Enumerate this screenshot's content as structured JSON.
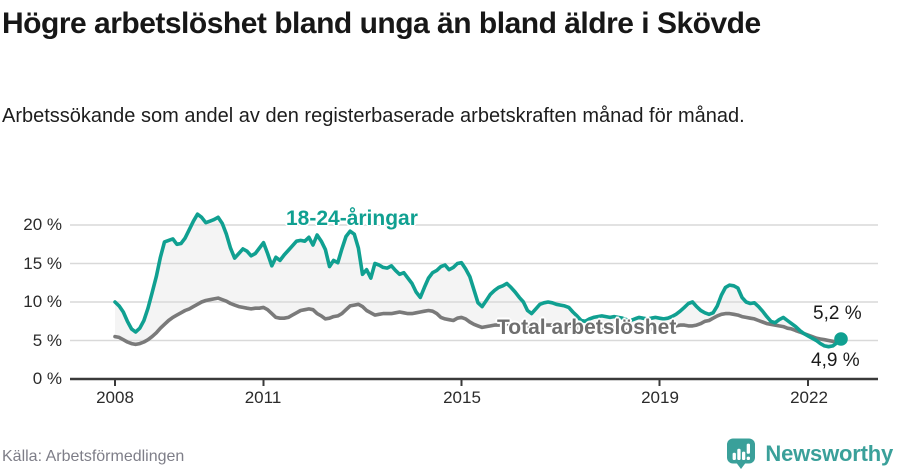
{
  "header": {
    "title": "Högre arbetslöshet bland unga än bland äldre i Skövde",
    "subtitle": "Arbetssökande som andel av den registerbaserade arbetskraften månad för månad."
  },
  "footer": {
    "source": "Källa: Arbetsförmedlingen",
    "brand": "Newsworthy"
  },
  "colors": {
    "young": "#10a091",
    "total": "#7a7a7a",
    "total_label": "#6f6f6f",
    "band": "#f4f4f4",
    "grid": "#d9d9d9",
    "axis": "#3a3a3a",
    "brand": "#3aa09a"
  },
  "chart_data": {
    "type": "line",
    "title": "Högre arbetslöshet bland unga än bland äldre i Skövde",
    "subtitle": "Arbetssökande som andel av den registerbaserade arbetskraften månad för månad.",
    "unit": "%",
    "frequency": "monthly",
    "x_start": "2008-01",
    "x_end": "2022-09",
    "x_base_year": 2008,
    "x_tick_years": [
      2008,
      2011,
      2015,
      2019,
      2022
    ],
    "x_tick_labels": [
      "2008",
      "2011",
      "2015",
      "2019",
      "2022"
    ],
    "y_tick_values": [
      20,
      15,
      10,
      5,
      0
    ],
    "y_ticks": [
      "20 %",
      "15 %",
      "10 %",
      "5 %",
      "0 %"
    ],
    "ylim": [
      0,
      22.5
    ],
    "grid": true,
    "legend": "inline-labels",
    "end_labels": {
      "young": "5,2 %",
      "total": "4,9 %"
    },
    "series": [
      {
        "name": "18-24-åringar",
        "color": "#10a091",
        "values": [
          10.0,
          9.5,
          8.7,
          7.5,
          6.5,
          6.1,
          6.6,
          7.6,
          9.2,
          11.2,
          13.3,
          15.8,
          17.8,
          18.0,
          18.2,
          17.5,
          17.6,
          18.3,
          19.4,
          20.5,
          21.4,
          21.0,
          20.3,
          20.5,
          20.7,
          21.0,
          20.2,
          18.8,
          17.0,
          15.7,
          16.3,
          16.9,
          16.6,
          16.0,
          16.3,
          17.0,
          17.7,
          16.3,
          14.7,
          15.8,
          15.4,
          16.1,
          16.7,
          17.3,
          17.9,
          18.0,
          17.9,
          18.4,
          17.4,
          18.7,
          17.9,
          16.8,
          14.6,
          15.4,
          15.1,
          16.9,
          18.5,
          19.2,
          18.8,
          17.0,
          13.6,
          14.2,
          13.1,
          15.0,
          14.8,
          14.5,
          14.4,
          14.7,
          14.1,
          13.6,
          13.8,
          13.1,
          12.4,
          11.3,
          10.6,
          11.9,
          13.1,
          13.8,
          14.1,
          14.6,
          14.8,
          14.2,
          14.5,
          15.0,
          15.1,
          14.3,
          13.3,
          11.6,
          9.9,
          9.4,
          10.2,
          11.0,
          11.5,
          11.9,
          12.1,
          12.4,
          11.9,
          11.3,
          10.6,
          10.0,
          8.9,
          8.5,
          9.1,
          9.7,
          9.9,
          10.0,
          9.9,
          9.7,
          9.6,
          9.5,
          9.3,
          8.7,
          8.2,
          7.6,
          7.5,
          7.8,
          8.0,
          8.1,
          8.2,
          8.1,
          8.0,
          8.1,
          8.0,
          7.9,
          7.7,
          7.6,
          7.8,
          8.0,
          7.9,
          7.8,
          7.9,
          8.0,
          7.9,
          7.8,
          7.9,
          8.1,
          8.4,
          8.8,
          9.3,
          9.8,
          10.0,
          9.4,
          8.9,
          8.6,
          8.4,
          8.6,
          9.5,
          10.9,
          11.9,
          12.2,
          12.1,
          11.8,
          10.6,
          10.0,
          9.8,
          9.9,
          9.4,
          8.8,
          8.1,
          7.5,
          7.3,
          7.7,
          8.0,
          7.6,
          7.2,
          6.8,
          6.3,
          5.9,
          5.6,
          5.3,
          5.0,
          4.6,
          4.3,
          4.2,
          4.3,
          4.7,
          5.2
        ]
      },
      {
        "name": "Total arbetslöshet",
        "color": "#7a7a7a",
        "values": [
          5.5,
          5.4,
          5.1,
          4.8,
          4.6,
          4.5,
          4.6,
          4.8,
          5.1,
          5.5,
          6.0,
          6.6,
          7.1,
          7.6,
          8.0,
          8.3,
          8.6,
          8.9,
          9.1,
          9.4,
          9.7,
          10.0,
          10.2,
          10.3,
          10.4,
          10.5,
          10.3,
          10.1,
          9.8,
          9.6,
          9.4,
          9.3,
          9.2,
          9.1,
          9.2,
          9.2,
          9.3,
          9.0,
          8.5,
          8.0,
          7.9,
          7.9,
          8.0,
          8.3,
          8.6,
          8.9,
          9.0,
          9.1,
          9.0,
          8.5,
          8.2,
          7.8,
          7.9,
          8.1,
          8.2,
          8.5,
          9.0,
          9.5,
          9.6,
          9.7,
          9.4,
          8.9,
          8.6,
          8.3,
          8.4,
          8.5,
          8.5,
          8.5,
          8.6,
          8.7,
          8.6,
          8.5,
          8.5,
          8.6,
          8.7,
          8.8,
          8.9,
          8.8,
          8.5,
          8.0,
          7.8,
          7.7,
          7.6,
          7.9,
          8.0,
          7.8,
          7.4,
          7.1,
          6.9,
          6.7,
          6.8,
          6.9,
          7.0,
          7.0,
          7.0,
          7.1,
          7.2,
          7.2,
          7.1,
          7.0,
          6.8,
          6.7,
          6.8,
          6.9,
          7.0,
          7.0,
          7.0,
          7.0,
          7.0,
          7.0,
          6.9,
          6.8,
          6.6,
          6.4,
          6.4,
          6.5,
          6.6,
          6.6,
          6.7,
          6.7,
          6.7,
          6.6,
          6.5,
          6.4,
          6.3,
          6.2,
          6.3,
          6.4,
          6.4,
          6.4,
          6.5,
          6.6,
          6.7,
          6.8,
          6.8,
          6.8,
          6.9,
          7.0,
          7.0,
          6.9,
          6.9,
          7.0,
          7.2,
          7.5,
          7.6,
          7.9,
          8.2,
          8.4,
          8.5,
          8.5,
          8.4,
          8.3,
          8.1,
          8.0,
          7.9,
          7.8,
          7.6,
          7.4,
          7.2,
          7.1,
          7.0,
          6.9,
          6.8,
          6.6,
          6.5,
          6.3,
          6.1,
          5.9,
          5.7,
          5.5,
          5.3,
          5.2,
          5.1,
          5.0,
          4.9,
          4.8,
          4.9
        ]
      }
    ]
  }
}
